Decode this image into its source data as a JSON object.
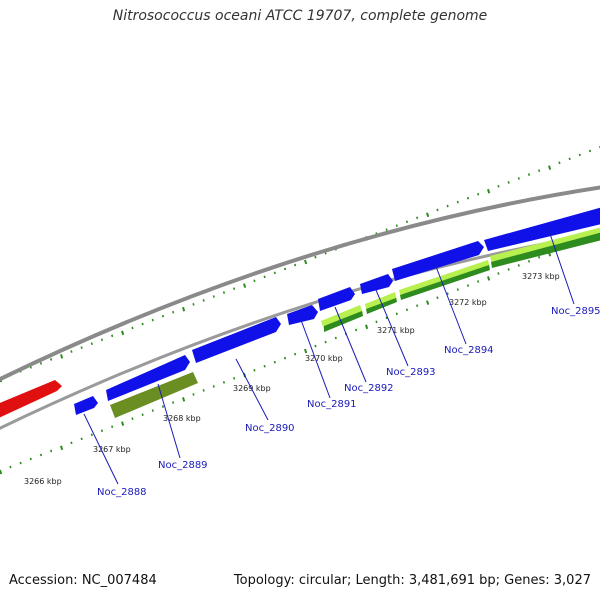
{
  "title": "Nitrosococcus oceani ATCC 19707, complete genome",
  "footer": {
    "accession": "Accession: NC_007484",
    "stats": "Topology: circular; Length: 3,481,691 bp; Genes: 3,027"
  },
  "colors": {
    "backbone": "#8a8a8a",
    "forward_gene": "#1010e8",
    "reverse_gene_red": "#e01010",
    "olive_feature": "#6b8e23",
    "light_green_feature": "#b8f050",
    "dark_green_feature": "#2e8b1e",
    "tick": "#2e8b1e",
    "label": "#1a1ab8"
  },
  "scale_labels": [
    "3266 kbp",
    "3267 kbp",
    "3268 kbp",
    "3269 kbp",
    "3270 kbp",
    "3271 kbp",
    "3272 kbp",
    "3273 kbp"
  ],
  "gene_labels": [
    "Noc_2888",
    "Noc_2889",
    "Noc_2890",
    "Noc_2891",
    "Noc_2892",
    "Noc_2893",
    "Noc_2894",
    "Noc_2895"
  ]
}
